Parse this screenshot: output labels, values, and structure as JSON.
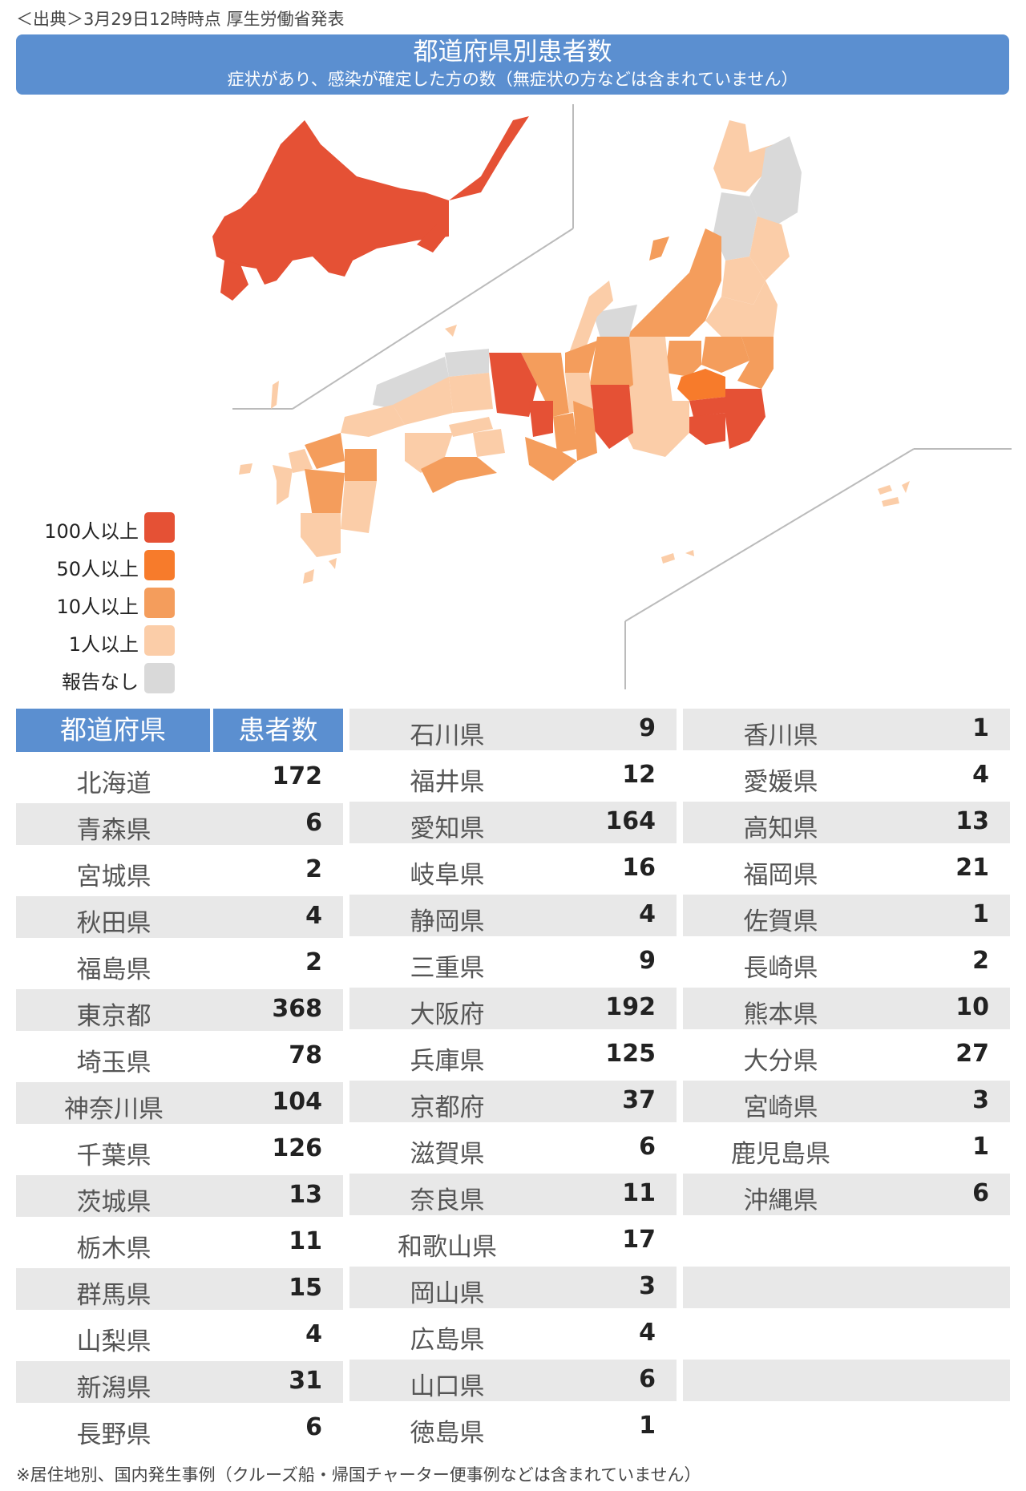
{
  "source_note": "＜出典＞3月29日12時時点 厚生労働省発表",
  "title": "都道府県別患者数",
  "subtitle": "症状があり、感染が確定した方の数（無症状の方などは含まれていません）",
  "legend": [
    {
      "label": "100人以上",
      "color": "#e55135"
    },
    {
      "label": "50人以上",
      "color": "#f77b2b"
    },
    {
      "label": "10人以上",
      "color": "#f49d5c"
    },
    {
      "label": "1人以上",
      "color": "#fbcda8"
    },
    {
      "label": "報告なし",
      "color": "#d9d9d9"
    }
  ],
  "table_header": {
    "prefecture": "都道府県",
    "patients": "患者数"
  },
  "columns": [
    [
      {
        "name": "北海道",
        "value": "172"
      },
      {
        "name": "青森県",
        "value": "6"
      },
      {
        "name": "宮城県",
        "value": "2"
      },
      {
        "name": "秋田県",
        "value": "4"
      },
      {
        "name": "福島県",
        "value": "2"
      },
      {
        "name": "東京都",
        "value": "368"
      },
      {
        "name": "埼玉県",
        "value": "78"
      },
      {
        "name": "神奈川県",
        "value": "104"
      },
      {
        "name": "千葉県",
        "value": "126"
      },
      {
        "name": "茨城県",
        "value": "13"
      },
      {
        "name": "栃木県",
        "value": "11"
      },
      {
        "name": "群馬県",
        "value": "15"
      },
      {
        "name": "山梨県",
        "value": "4"
      },
      {
        "name": "新潟県",
        "value": "31"
      },
      {
        "name": "長野県",
        "value": "6"
      }
    ],
    [
      {
        "name": "石川県",
        "value": "9"
      },
      {
        "name": "福井県",
        "value": "12"
      },
      {
        "name": "愛知県",
        "value": "164"
      },
      {
        "name": "岐阜県",
        "value": "16"
      },
      {
        "name": "静岡県",
        "value": "4"
      },
      {
        "name": "三重県",
        "value": "9"
      },
      {
        "name": "大阪府",
        "value": "192"
      },
      {
        "name": "兵庫県",
        "value": "125"
      },
      {
        "name": "京都府",
        "value": "37"
      },
      {
        "name": "滋賀県",
        "value": "6"
      },
      {
        "name": "奈良県",
        "value": "11"
      },
      {
        "name": "和歌山県",
        "value": "17"
      },
      {
        "name": "岡山県",
        "value": "3"
      },
      {
        "name": "広島県",
        "value": "4"
      },
      {
        "name": "山口県",
        "value": "6"
      },
      {
        "name": "徳島県",
        "value": "1"
      }
    ],
    [
      {
        "name": "香川県",
        "value": "1"
      },
      {
        "name": "愛媛県",
        "value": "4"
      },
      {
        "name": "高知県",
        "value": "13"
      },
      {
        "name": "福岡県",
        "value": "21"
      },
      {
        "name": "佐賀県",
        "value": "1"
      },
      {
        "name": "長崎県",
        "value": "2"
      },
      {
        "name": "熊本県",
        "value": "10"
      },
      {
        "name": "大分県",
        "value": "27"
      },
      {
        "name": "宮崎県",
        "value": "3"
      },
      {
        "name": "鹿児島県",
        "value": "1"
      },
      {
        "name": "沖縄県",
        "value": "6"
      },
      {
        "name": "",
        "value": ""
      },
      {
        "name": "",
        "value": ""
      },
      {
        "name": "",
        "value": ""
      },
      {
        "name": "",
        "value": ""
      },
      {
        "name": "",
        "value": ""
      }
    ]
  ],
  "footnote": "※居住地別、国内発生事例（クルーズ船・帰国チャーター便事例などは含まれていません）"
}
